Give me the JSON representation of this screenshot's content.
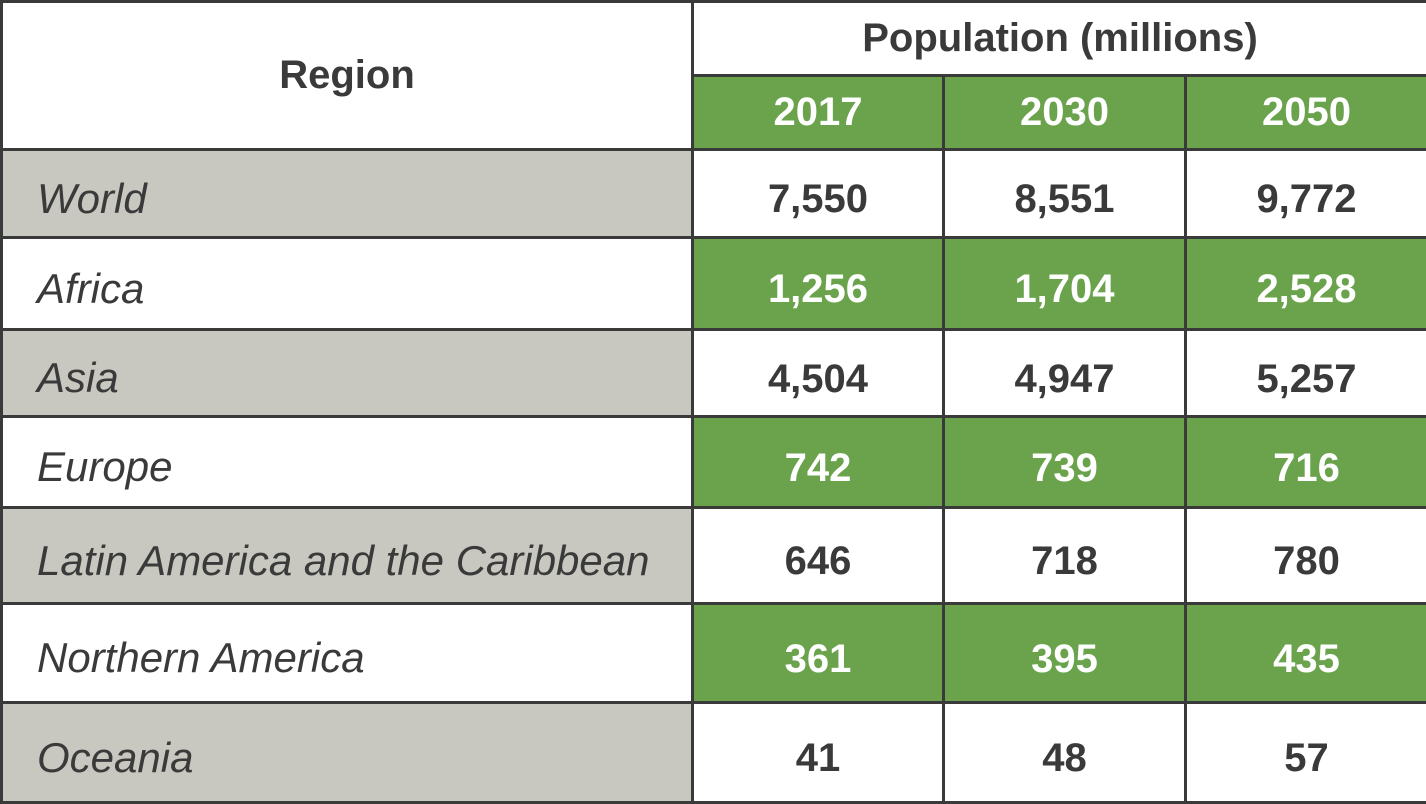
{
  "chart_data": {
    "type": "table",
    "title": "",
    "header": {
      "region_label": "Region",
      "group_label": "Population (millions)",
      "years": [
        "2017",
        "2030",
        "2050"
      ]
    },
    "rows": [
      {
        "region": "World",
        "values": [
          "7,550",
          "8,551",
          "9,772"
        ]
      },
      {
        "region": "Africa",
        "values": [
          "1,256",
          "1,704",
          "2,528"
        ]
      },
      {
        "region": "Asia",
        "values": [
          "4,504",
          "4,947",
          "5,257"
        ]
      },
      {
        "region": "Europe",
        "values": [
          "742",
          "739",
          "716"
        ]
      },
      {
        "region": "Latin America and the Caribbean",
        "values": [
          "646",
          "718",
          "780"
        ]
      },
      {
        "region": "Northern America",
        "values": [
          "361",
          "395",
          "435"
        ]
      },
      {
        "region": "Oceania",
        "values": [
          "41",
          "48",
          "57"
        ]
      }
    ]
  },
  "colors": {
    "accent_green": "#6aa34c",
    "region_gray": "#c8c8c0",
    "text_dark": "#3a3a3a",
    "border": "#3a3a3a"
  }
}
